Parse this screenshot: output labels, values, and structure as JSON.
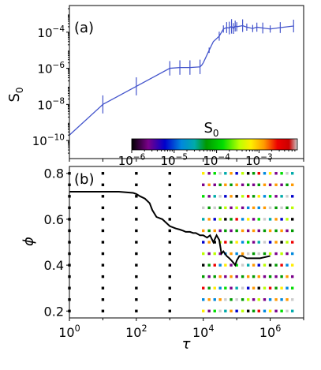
{
  "chart_data": [
    {
      "type": "line",
      "panel_label": "(a)",
      "xlabel": "",
      "ylabel": "S",
      "ylabel_sub": "0",
      "x_scale": "log",
      "y_scale": "log",
      "xlim": [
        1,
        10000000
      ],
      "ylim": [
        1e-11,
        0.003
      ],
      "yticks": [
        {
          "value": 1e-10,
          "base": "10",
          "exp": "−10"
        },
        {
          "value": 1e-08,
          "base": "10",
          "exp": "−8"
        },
        {
          "value": 1e-06,
          "base": "10",
          "exp": "−6"
        },
        {
          "value": 0.0001,
          "base": "10",
          "exp": "−4"
        }
      ],
      "series_color": "#4455cc",
      "series": [
        {
          "x": [
            1,
            10,
            100,
            1000,
            2000,
            4000,
            8000,
            9000,
            10000,
            15000,
            20000,
            30000,
            40000,
            50000,
            60000,
            70000,
            80000,
            90000,
            100000,
            150000,
            200000,
            300000,
            400000,
            600000,
            1000000,
            2000000,
            5000000
          ],
          "y": [
            2e-10,
            1e-08,
            1e-07,
            1e-06,
            1.1e-06,
            1.1e-06,
            1.2e-06,
            1.5e-06,
            2e-06,
            1e-05,
            3e-05,
            6e-05,
            0.00015,
            0.00018,
            0.00017,
            0.00021,
            0.00016,
            0.00022,
            0.0002,
            0.00023,
            0.00019,
            0.00016,
            0.00019,
            0.00017,
            0.00015,
            0.00018,
            0.00022
          ],
          "err": [
            0,
            0.5,
            0.5,
            0.4,
            0.4,
            0.4,
            0.4,
            0,
            0,
            0.15,
            0,
            0.25,
            0.2,
            0.3,
            0.35,
            0.4,
            0.3,
            0.3,
            0.25,
            0.35,
            0.2,
            0.2,
            0.25,
            0.3,
            0.2,
            0.3,
            0.35
          ]
        }
      ],
      "colorbar": {
        "title": "S",
        "title_sub": "0",
        "scale": "log",
        "range": [
          1e-06,
          0.008
        ],
        "colormap": "nipy_spectral",
        "ticks": [
          {
            "value": 1e-06,
            "base": "10",
            "exp": "−6"
          },
          {
            "value": 1e-05,
            "base": "10",
            "exp": "−5"
          },
          {
            "value": 0.0001,
            "base": "10",
            "exp": "−4"
          },
          {
            "value": 0.001,
            "base": "10",
            "exp": "−3"
          }
        ]
      }
    },
    {
      "type": "scatter",
      "panel_label": "(b)",
      "xlabel": "τ",
      "ylabel": "ϕ",
      "x_scale": "log",
      "xlim": [
        1,
        10000000
      ],
      "ylim": [
        0.17,
        0.83
      ],
      "xticks": [
        {
          "value": 1,
          "base": "10",
          "exp": "0"
        },
        {
          "value": 100,
          "base": "10",
          "exp": "2"
        },
        {
          "value": 10000,
          "base": "10",
          "exp": "4"
        },
        {
          "value": 1000000,
          "base": "10",
          "exp": "6"
        }
      ],
      "yticks": [
        {
          "value": 0.2,
          "label": "0.2"
        },
        {
          "value": 0.4,
          "label": "0.4"
        },
        {
          "value": 0.6,
          "label": "0.6"
        },
        {
          "value": 0.8,
          "label": "0.8"
        }
      ],
      "grid_phi": [
        0.2,
        0.25,
        0.3,
        0.35,
        0.4,
        0.45,
        0.5,
        0.55,
        0.6,
        0.65,
        0.7,
        0.75,
        0.8
      ],
      "grid_tau": [
        1,
        10,
        100,
        1000,
        10000,
        15000,
        22000,
        32000,
        46000,
        68000,
        100000,
        150000,
        220000,
        320000,
        460000,
        680000,
        1000000,
        1500000,
        2200000,
        3200000,
        4600000
      ],
      "line_color": "#000000",
      "line": {
        "x": [
          1,
          3,
          10,
          30,
          80,
          100,
          130,
          180,
          250,
          300,
          400,
          600,
          1000,
          1500,
          2000,
          2500,
          3000,
          4000,
          5000,
          6000,
          8000,
          10000,
          13000,
          16000,
          20000,
          25000,
          30000,
          35000,
          40000,
          50000,
          60000,
          70000,
          80000,
          90000,
          100000,
          120000,
          150000,
          200000,
          300000,
          500000,
          1000000
        ],
        "y": [
          0.72,
          0.72,
          0.72,
          0.72,
          0.715,
          0.71,
          0.7,
          0.69,
          0.67,
          0.64,
          0.61,
          0.6,
          0.57,
          0.56,
          0.555,
          0.55,
          0.545,
          0.545,
          0.54,
          0.54,
          0.53,
          0.53,
          0.52,
          0.53,
          0.5,
          0.53,
          0.51,
          0.45,
          0.46,
          0.44,
          0.43,
          0.42,
          0.41,
          0.4,
          0.42,
          0.44,
          0.44,
          0.43,
          0.43,
          0.43,
          0.44
        ]
      }
    }
  ]
}
